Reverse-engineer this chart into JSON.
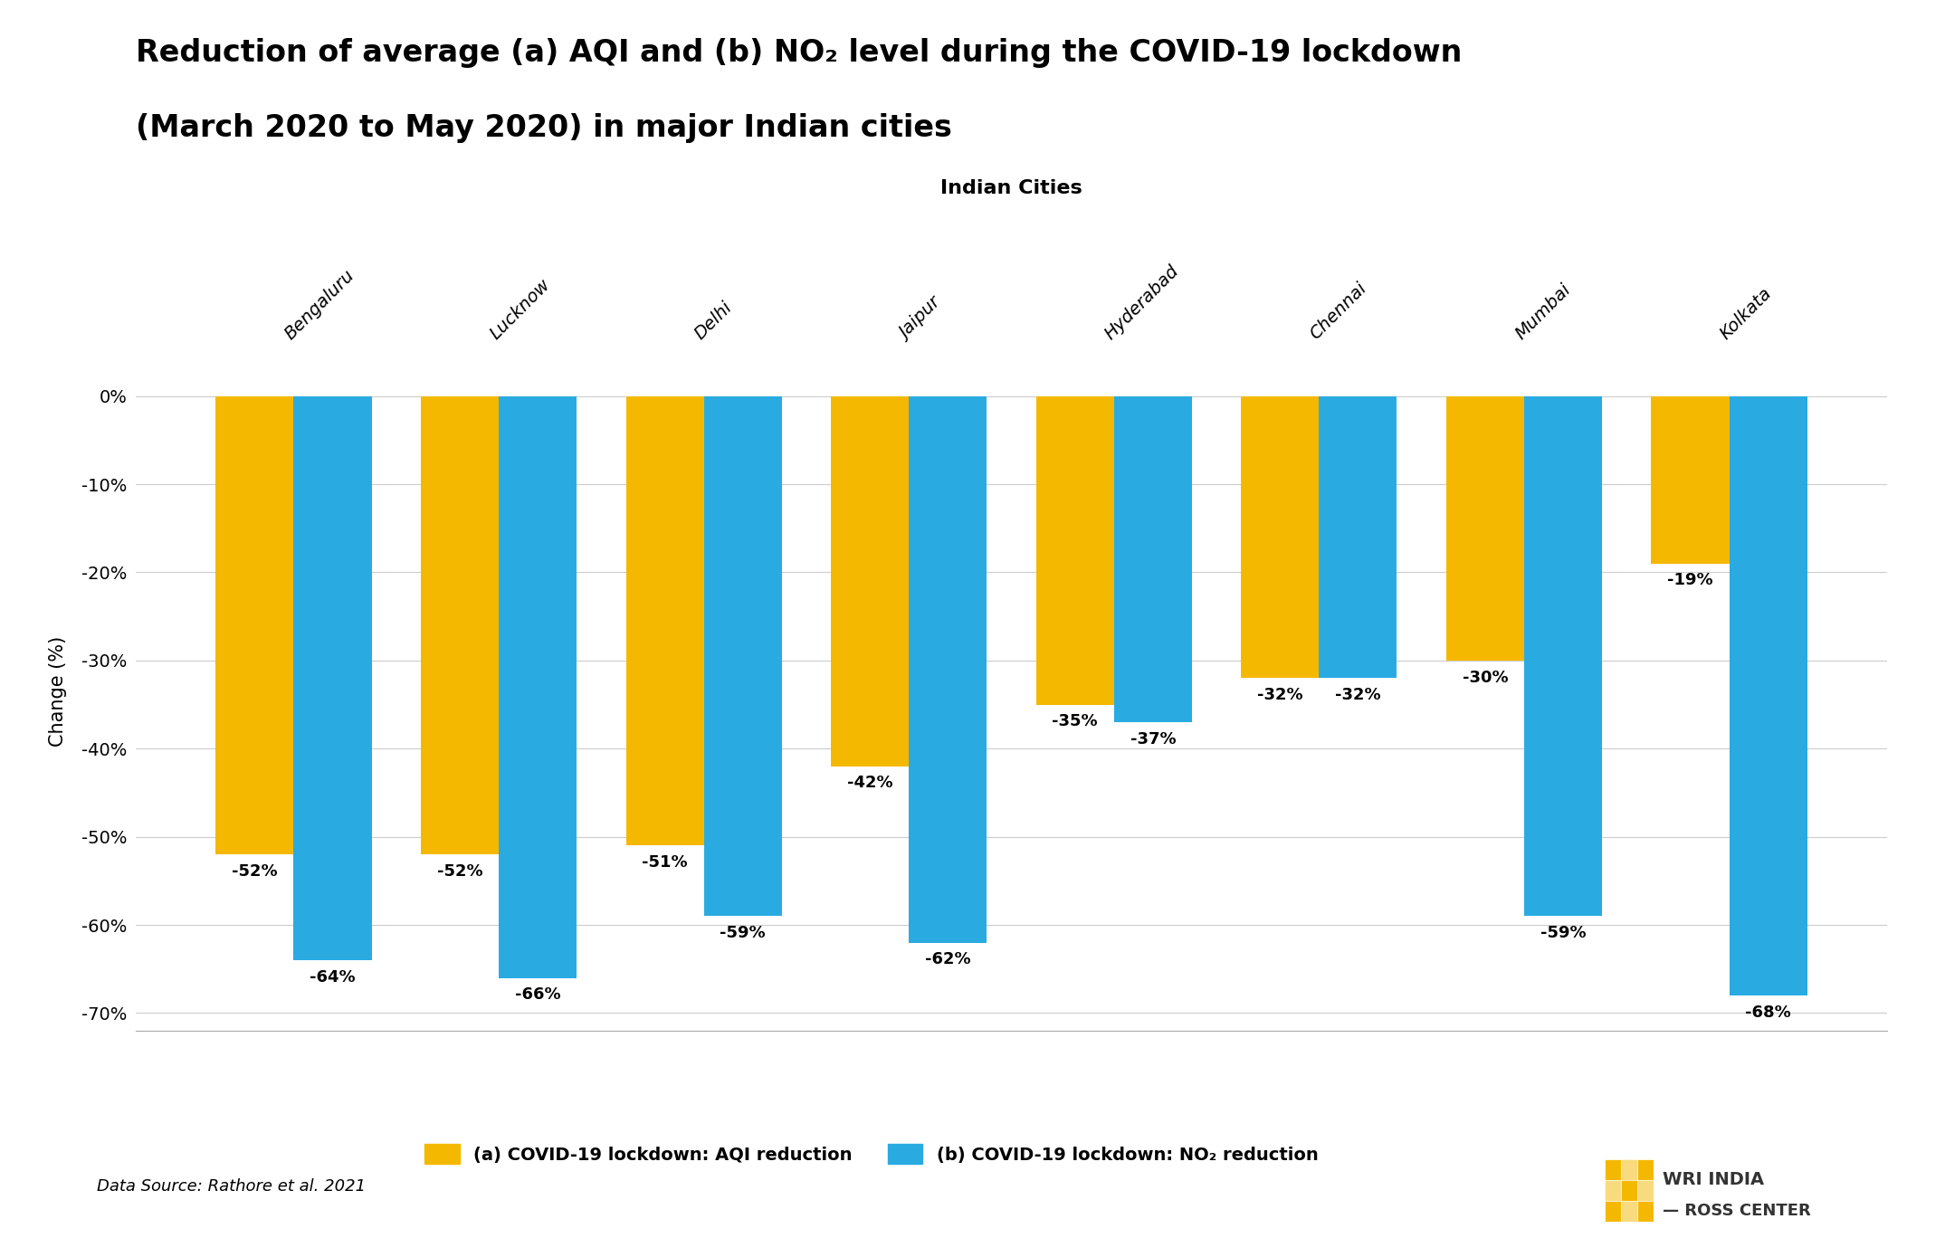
{
  "cities": [
    "Bengaluru",
    "Lucknow",
    "Delhi",
    "Jaipur",
    "Hyderabad",
    "Chennai",
    "Mumbai",
    "Kolkata"
  ],
  "aqi_values": [
    -52,
    -52,
    -51,
    -42,
    -35,
    -32,
    -30,
    -19
  ],
  "no2_values": [
    -64,
    -66,
    -59,
    -62,
    -37,
    -32,
    -59,
    -68
  ],
  "aqi_color": "#F5B800",
  "no2_color": "#29ABE2",
  "title_line1": "Reduction of average (a) AQI and (b) NO₂ level during the COVID-19 lockdown",
  "title_line2": "(March 2020 to May 2020) in major Indian cities",
  "xlabel": "Indian Cities",
  "ylabel": "Change (%)",
  "ylim": [
    -72,
    5
  ],
  "yticks": [
    0,
    -10,
    -20,
    -30,
    -40,
    -50,
    -60,
    -70
  ],
  "ytick_labels": [
    "0%",
    "-10%",
    "-20%",
    "-30%",
    "-40%",
    "-50%",
    "-60%",
    "-70%"
  ],
  "legend_aqi": "(a) COVID-19 lockdown: AQI reduction",
  "legend_no2": "(b) COVID-19 lockdown: NO₂ reduction",
  "source_text": "Data Source: Rathore et al. 2021",
  "background_color": "#ffffff",
  "bar_width": 0.38,
  "title_fontsize": 24,
  "axis_label_fontsize": 15,
  "tick_fontsize": 14,
  "bar_label_fontsize": 13,
  "legend_fontsize": 14,
  "city_label_fontsize": 14
}
